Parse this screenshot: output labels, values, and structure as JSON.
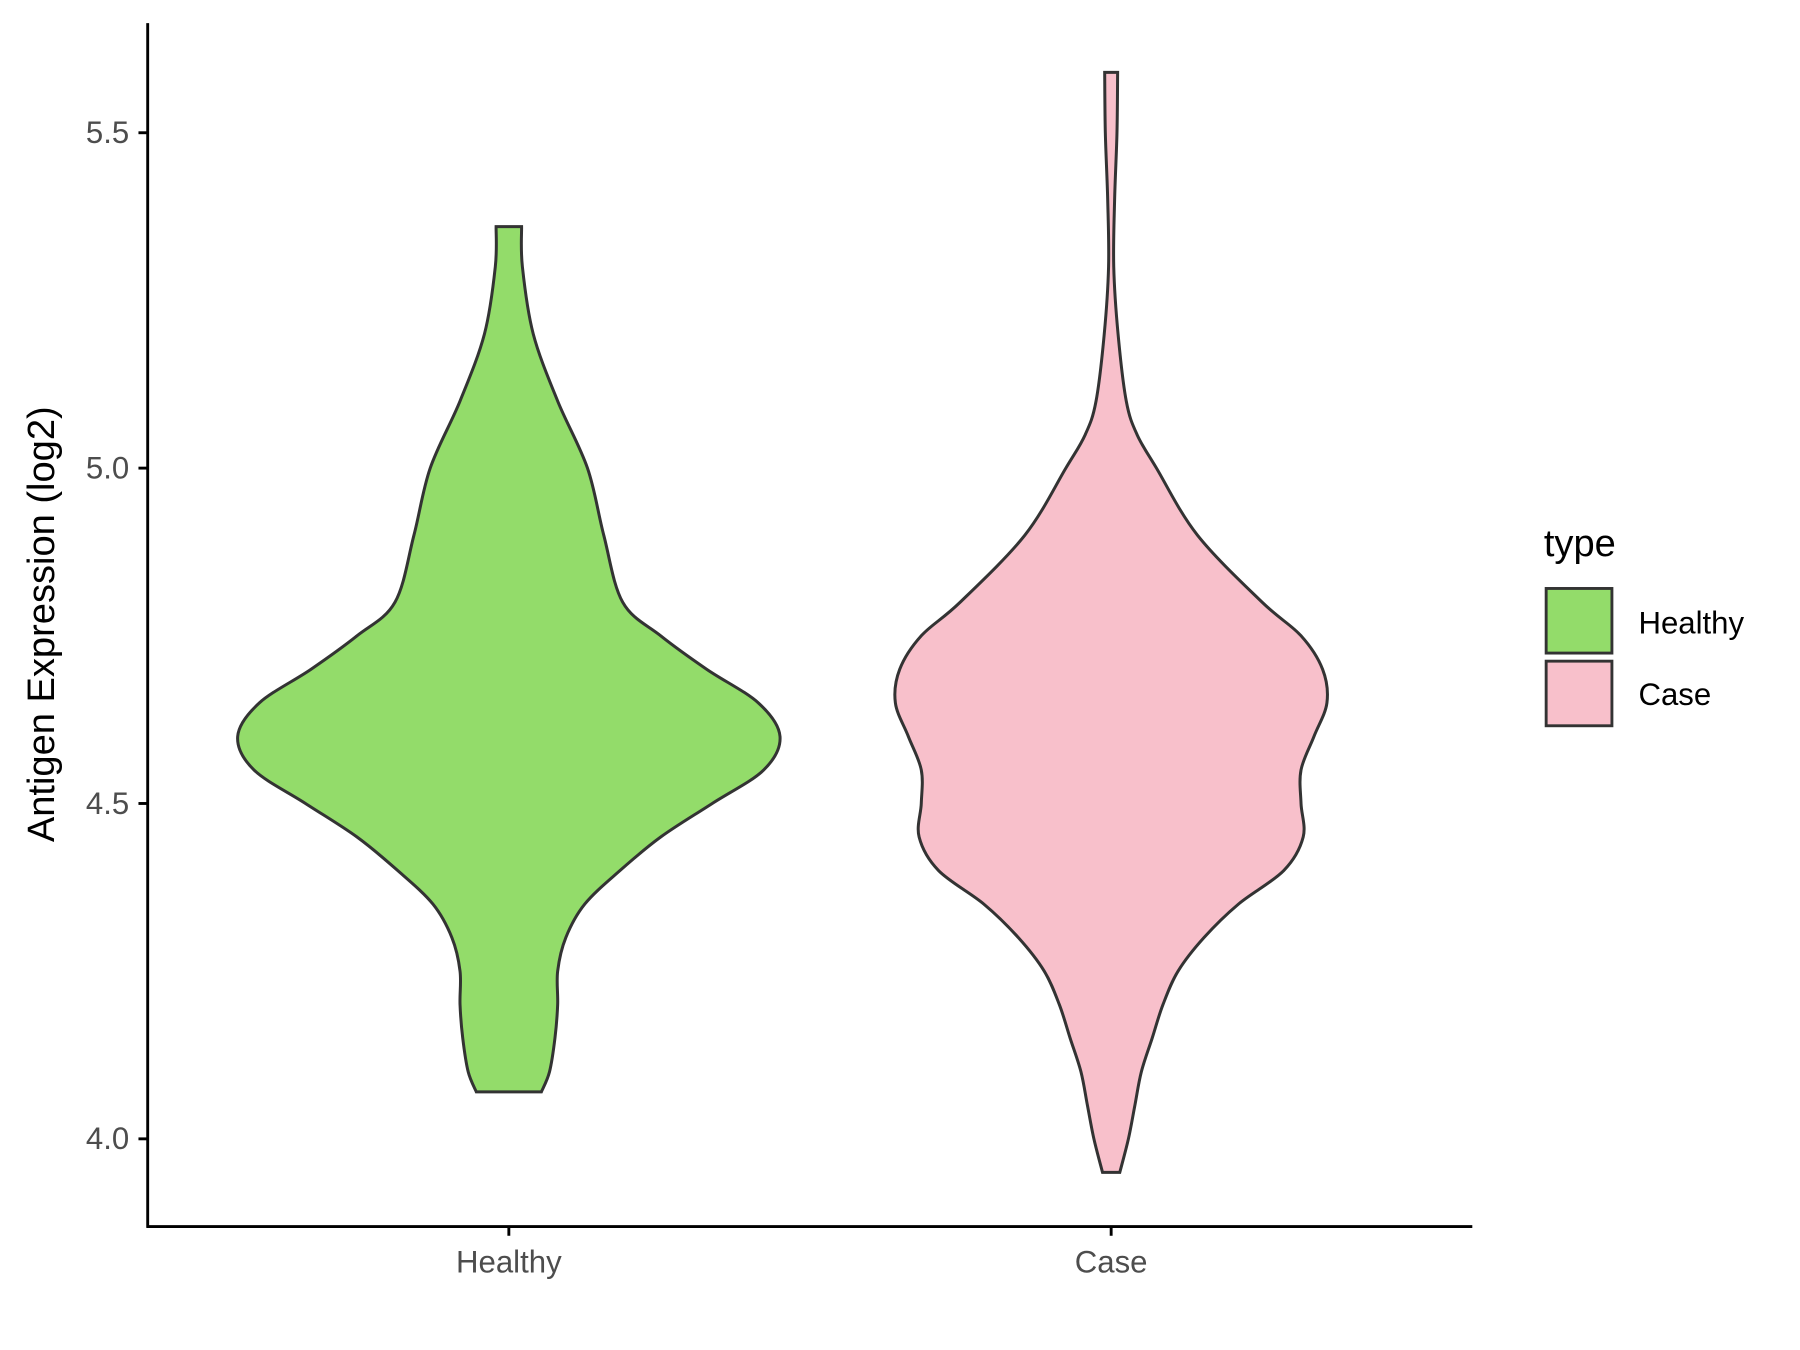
{
  "chart_data": {
    "type": "violin",
    "title": "",
    "xlabel": "",
    "ylabel": "Antigen Expression (log2)",
    "categories": [
      "Healthy",
      "Case"
    ],
    "yticks": [
      "4.0",
      "4.5",
      "5.0",
      "5.5"
    ],
    "ylim": [
      3.87,
      5.67
    ],
    "grid": false,
    "legend": {
      "title": "type",
      "position": "right",
      "entries": [
        "Healthy",
        "Case"
      ]
    },
    "colors": {
      "Healthy": "#93DC6A",
      "Case": "#F8C0CB",
      "outline": "#333333"
    },
    "series": [
      {
        "name": "Healthy",
        "ymin": 4.07,
        "ymax": 5.36,
        "density_profile": [
          [
            4.07,
            0.12
          ],
          [
            4.1,
            0.15
          ],
          [
            4.15,
            0.17
          ],
          [
            4.2,
            0.18
          ],
          [
            4.25,
            0.18
          ],
          [
            4.3,
            0.21
          ],
          [
            4.35,
            0.28
          ],
          [
            4.4,
            0.41
          ],
          [
            4.45,
            0.56
          ],
          [
            4.5,
            0.75
          ],
          [
            4.55,
            0.94
          ],
          [
            4.6,
            1.0
          ],
          [
            4.65,
            0.92
          ],
          [
            4.7,
            0.73
          ],
          [
            4.75,
            0.56
          ],
          [
            4.8,
            0.42
          ],
          [
            4.9,
            0.35
          ],
          [
            5.0,
            0.29
          ],
          [
            5.1,
            0.18
          ],
          [
            5.2,
            0.09
          ],
          [
            5.3,
            0.05
          ],
          [
            5.36,
            0.047
          ]
        ]
      },
      {
        "name": "Case",
        "ymin": 3.95,
        "ymax": 5.59,
        "density_profile": [
          [
            3.95,
            0.04
          ],
          [
            4.0,
            0.08
          ],
          [
            4.05,
            0.11
          ],
          [
            4.1,
            0.14
          ],
          [
            4.15,
            0.19
          ],
          [
            4.2,
            0.24
          ],
          [
            4.25,
            0.31
          ],
          [
            4.3,
            0.43
          ],
          [
            4.35,
            0.59
          ],
          [
            4.4,
            0.8
          ],
          [
            4.45,
            0.89
          ],
          [
            4.5,
            0.88
          ],
          [
            4.55,
            0.88
          ],
          [
            4.6,
            0.94
          ],
          [
            4.65,
            1.0
          ],
          [
            4.7,
            0.98
          ],
          [
            4.75,
            0.88
          ],
          [
            4.8,
            0.7
          ],
          [
            4.9,
            0.4
          ],
          [
            5.0,
            0.21
          ],
          [
            5.05,
            0.12
          ],
          [
            5.1,
            0.07
          ],
          [
            5.2,
            0.032
          ],
          [
            5.3,
            0.012
          ],
          [
            5.4,
            0.016
          ],
          [
            5.5,
            0.027
          ],
          [
            5.59,
            0.03
          ]
        ]
      }
    ]
  }
}
